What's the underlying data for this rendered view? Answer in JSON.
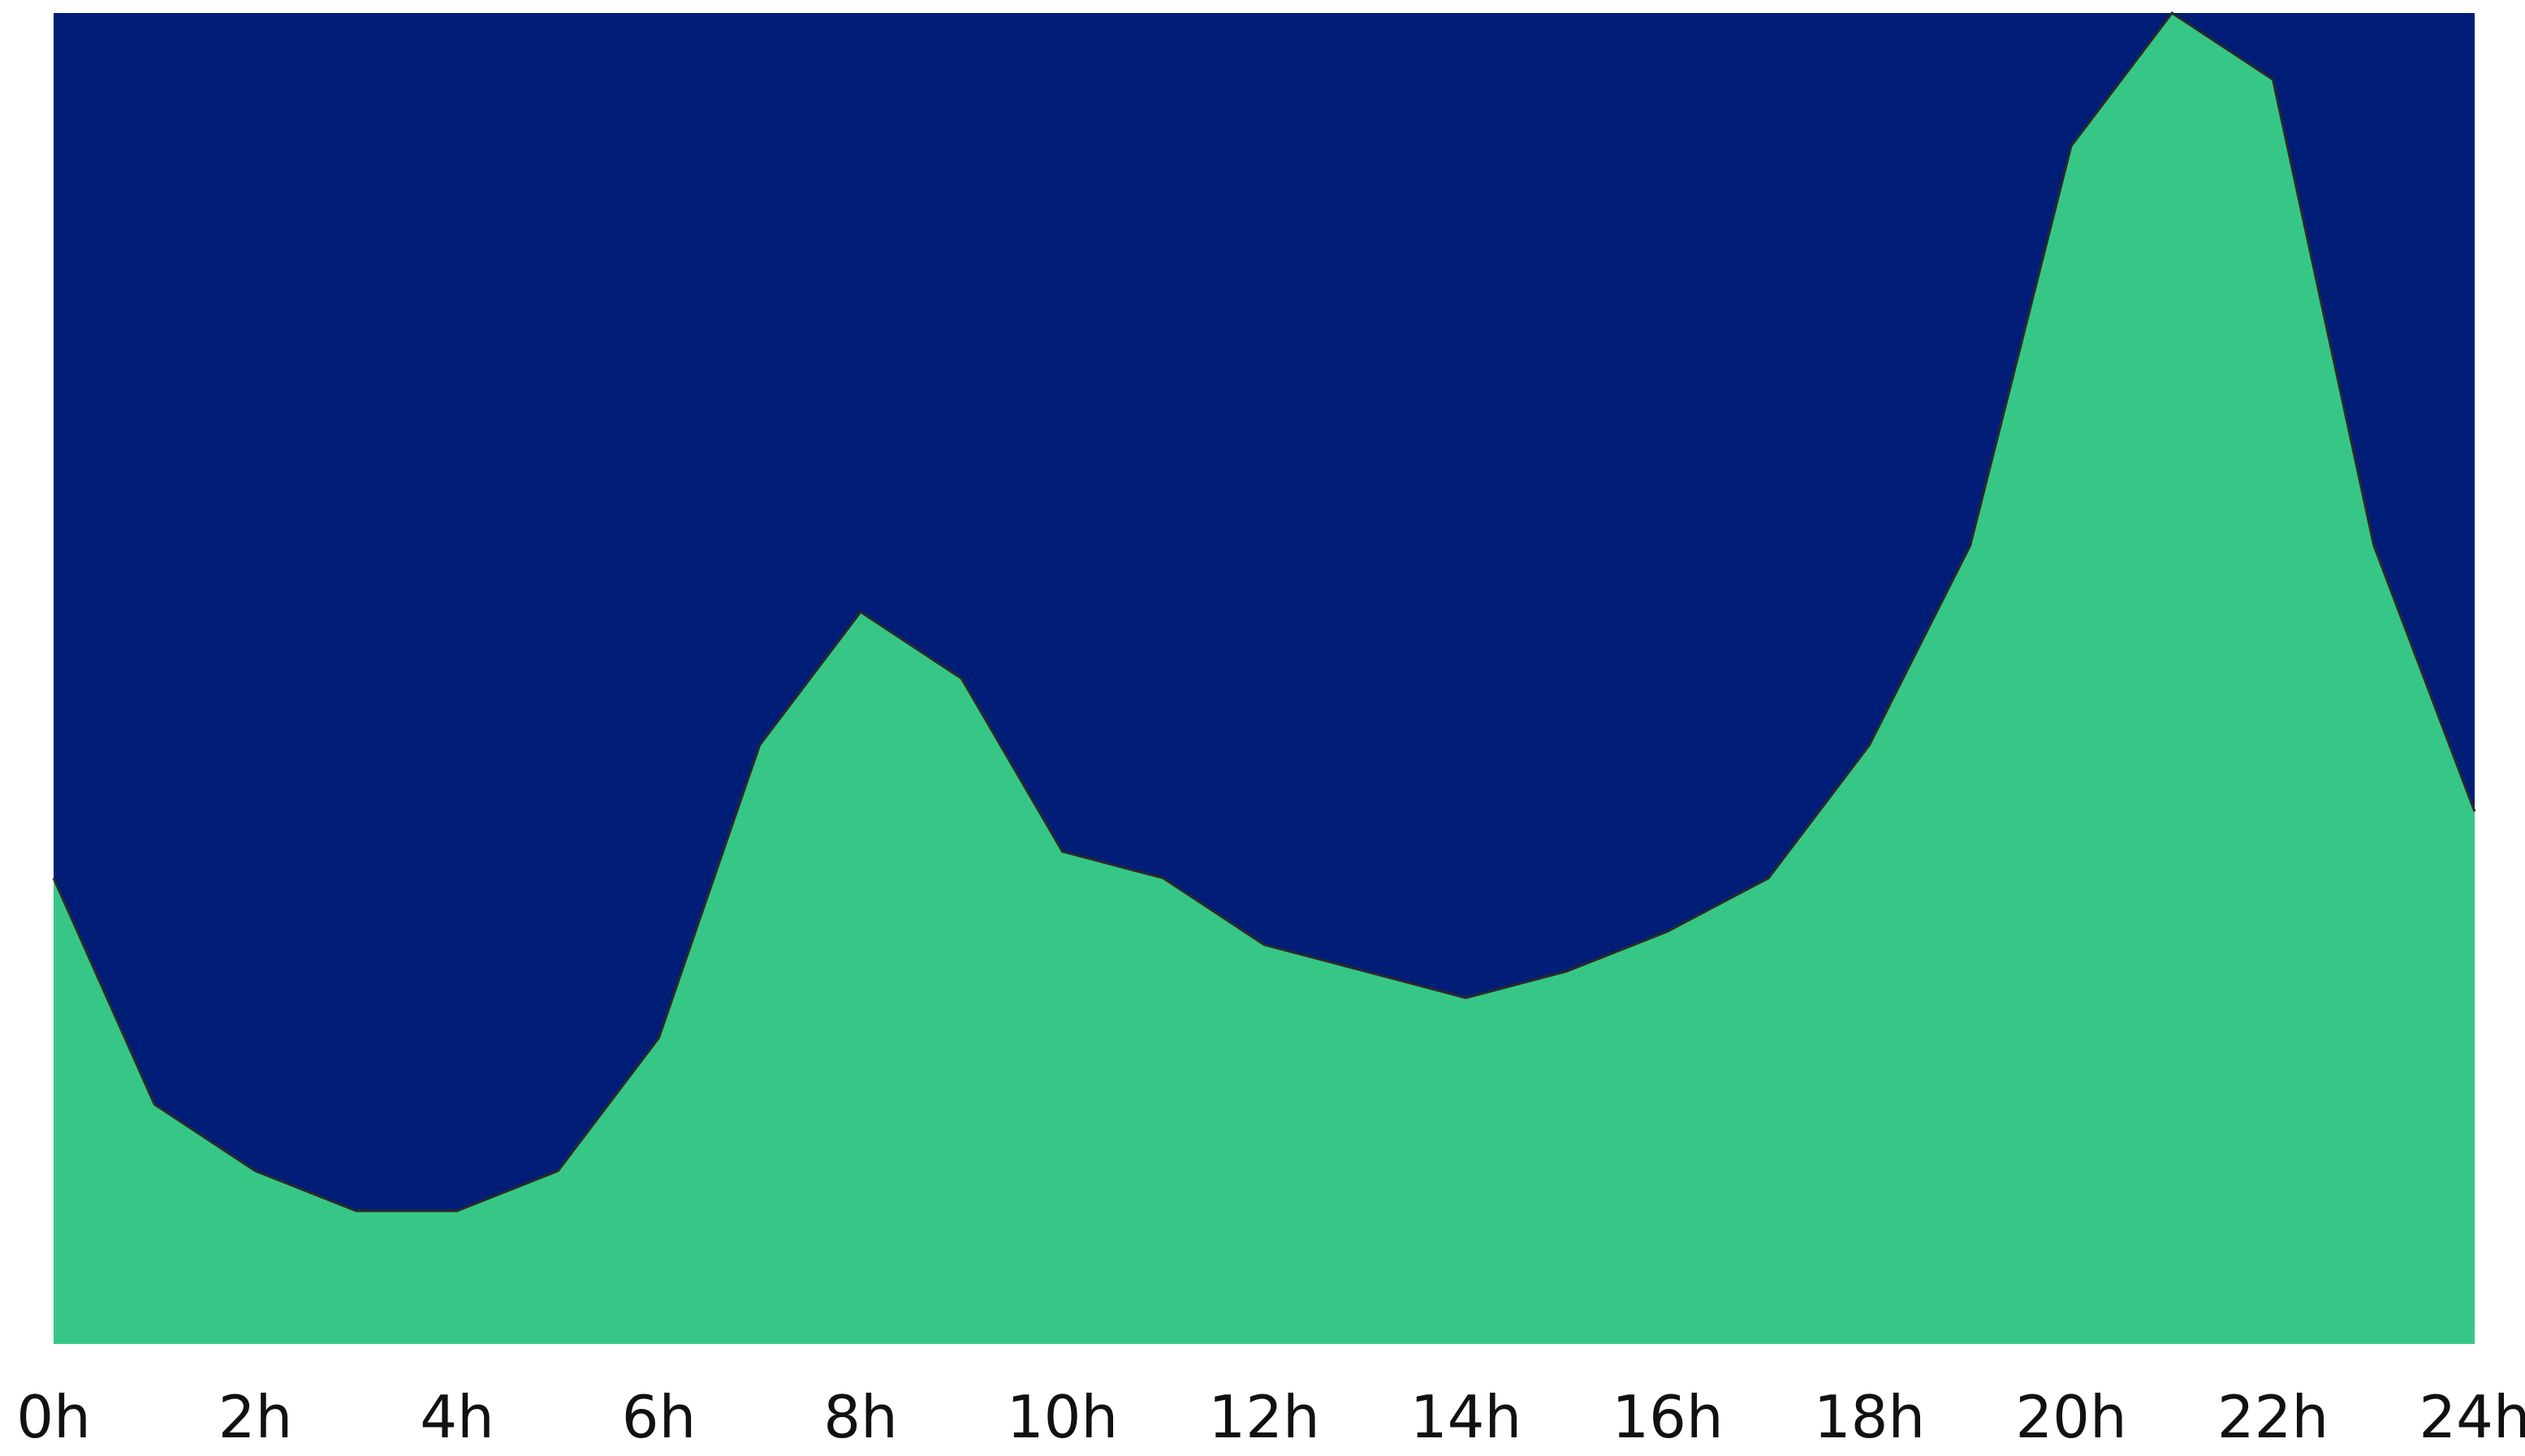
{
  "chart_data": {
    "type": "area",
    "title": "",
    "xlabel": "",
    "ylabel": "",
    "x": [
      0,
      1,
      2,
      3,
      4,
      5,
      6,
      7,
      8,
      9,
      10,
      11,
      12,
      13,
      14,
      15,
      16,
      17,
      18,
      19,
      20,
      21,
      22,
      23,
      24
    ],
    "values": [
      35,
      18,
      13,
      10,
      10,
      13,
      23,
      45,
      55,
      50,
      37,
      35,
      30,
      28,
      26,
      28,
      31,
      35,
      45,
      60,
      90,
      100,
      95,
      60,
      40
    ],
    "xlim": [
      0,
      24
    ],
    "ylim": [
      0,
      100
    ],
    "x_ticks": [
      {
        "value": 0,
        "label": "0h"
      },
      {
        "value": 2,
        "label": "2h"
      },
      {
        "value": 4,
        "label": "4h"
      },
      {
        "value": 6,
        "label": "6h"
      },
      {
        "value": 8,
        "label": "8h"
      },
      {
        "value": 10,
        "label": "10h"
      },
      {
        "value": 12,
        "label": "12h"
      },
      {
        "value": 14,
        "label": "14h"
      },
      {
        "value": 16,
        "label": "16h"
      },
      {
        "value": 18,
        "label": "18h"
      },
      {
        "value": 20,
        "label": "20h"
      },
      {
        "value": 22,
        "label": "22h"
      },
      {
        "value": 24,
        "label": "24h"
      }
    ],
    "grid": false,
    "legend": "none",
    "colors": {
      "background": "#001e78",
      "area": "#36c787",
      "tick_text": "#111111"
    }
  }
}
